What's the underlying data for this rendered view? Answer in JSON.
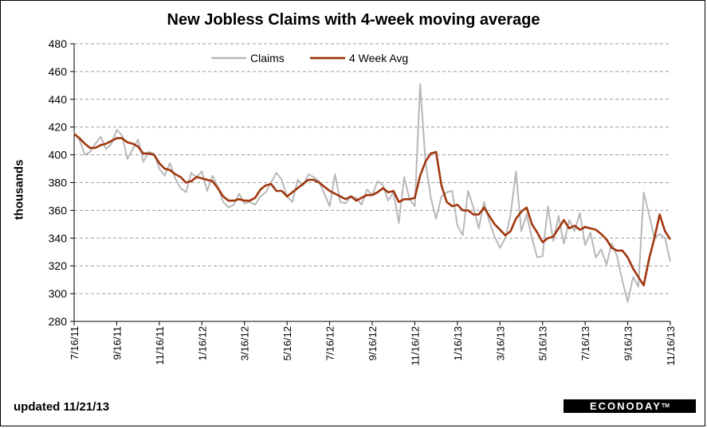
{
  "chart_data": {
    "type": "line",
    "title": "New Jobless Claims with 4-week moving average",
    "ylabel": "thousands",
    "xlabel": "",
    "ylim": [
      280,
      480
    ],
    "yticks": [
      280,
      300,
      320,
      340,
      360,
      380,
      400,
      420,
      440,
      460,
      480
    ],
    "xtick_labels": [
      "7/16/11",
      "9/16/11",
      "11/16/11",
      "1/16/12",
      "3/16/12",
      "5/16/12",
      "7/16/12",
      "9/16/12",
      "11/16/12",
      "1/16/13",
      "3/16/13",
      "5/16/13",
      "7/16/13",
      "9/16/13",
      "11/16/13"
    ],
    "grid": "horizontal dashed",
    "legend_position": "top",
    "series": [
      {
        "name": "Claims",
        "color": "#b8b8b8",
        "values": [
          416,
          411,
          400,
          402,
          408,
          413,
          404,
          408,
          418,
          414,
          397,
          404,
          411,
          395,
          402,
          401,
          390,
          385,
          394,
          383,
          376,
          373,
          387,
          384,
          388,
          374,
          385,
          377,
          366,
          362,
          364,
          372,
          365,
          366,
          364,
          370,
          373,
          380,
          387,
          382,
          370,
          366,
          382,
          378,
          386,
          384,
          381,
          372,
          363,
          386,
          366,
          365,
          370,
          369,
          364,
          375,
          371,
          381,
          378,
          367,
          373,
          351,
          384,
          368,
          363,
          451,
          395,
          369,
          354,
          370,
          373,
          374,
          349,
          342,
          374,
          362,
          347,
          366,
          352,
          341,
          333,
          340,
          357,
          388,
          345,
          357,
          340,
          326,
          327,
          363,
          338,
          356,
          336,
          353,
          345,
          358,
          335,
          344,
          326,
          332,
          321,
          336,
          327,
          309,
          294,
          312,
          305,
          373,
          357,
          340,
          343,
          340,
          323
        ]
      },
      {
        "name": "4 Week Avg",
        "color": "#a0360e",
        "values": [
          415,
          412,
          408,
          405,
          405,
          407,
          408,
          410,
          412,
          412,
          409,
          408,
          406,
          401,
          401,
          400,
          394,
          390,
          389,
          386,
          384,
          380,
          381,
          384,
          383,
          382,
          381,
          376,
          370,
          367,
          367,
          368,
          367,
          367,
          369,
          375,
          378,
          379,
          374,
          374,
          370,
          373,
          376,
          379,
          382,
          382,
          380,
          377,
          374,
          372,
          370,
          368,
          370,
          367,
          369,
          371,
          371,
          373,
          376,
          373,
          374,
          366,
          368,
          368,
          369,
          385,
          395,
          401,
          402,
          378,
          366,
          363,
          364,
          360,
          360,
          357,
          357,
          362,
          356,
          350,
          346,
          342,
          345,
          354,
          359,
          362,
          350,
          344,
          337,
          340,
          341,
          347,
          353,
          347,
          349,
          346,
          348,
          347,
          346,
          343,
          339,
          333,
          331,
          331,
          326,
          318,
          312,
          306,
          325,
          340,
          357,
          345,
          339
        ]
      }
    ]
  },
  "footer": {
    "updated": "updated 11/21/13",
    "logo": "ECONODAY",
    "logo_mark": "TM"
  }
}
